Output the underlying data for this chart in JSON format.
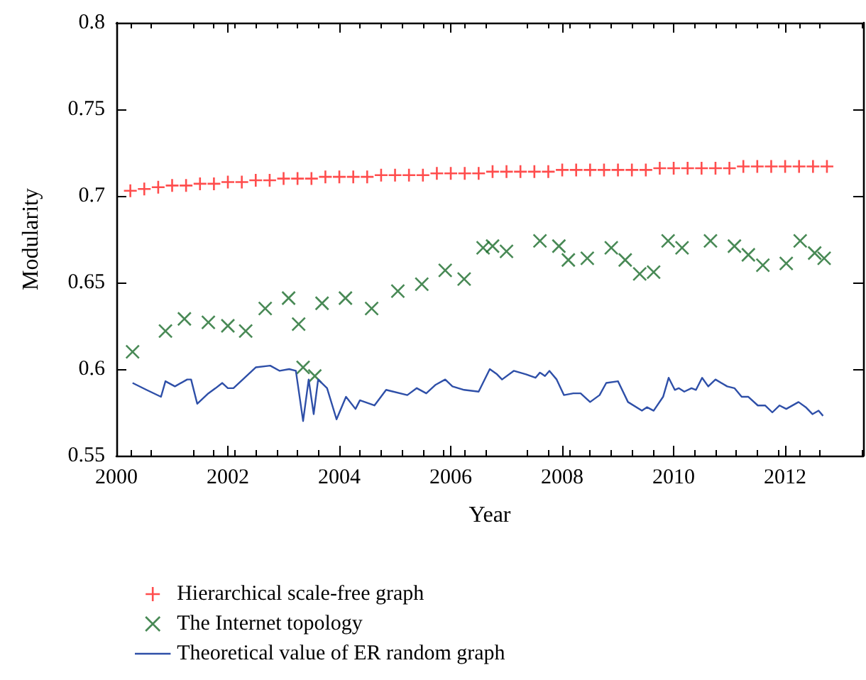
{
  "chart_data": {
    "type": "scatter",
    "xlabel": "Year",
    "ylabel": "Modularity",
    "xlim": [
      2000,
      2013.4
    ],
    "xticks": [
      2000,
      2002,
      2004,
      2006,
      2008,
      2010,
      2012
    ],
    "ylim": [
      0.55,
      0.8
    ],
    "yticks": [
      0.55,
      0.6,
      0.65,
      0.7,
      0.75,
      0.8
    ],
    "grid": false,
    "legend": "bottom",
    "series": [
      {
        "name": "Hierarchical scale-free graph",
        "marker": "cross",
        "color": "#ff2020",
        "x": [
          2000.25,
          2000.5,
          2000.75,
          2001,
          2001.25,
          2001.5,
          2001.75,
          2002,
          2002.25,
          2002.5,
          2002.75,
          2003,
          2003.25,
          2003.5,
          2003.75,
          2004,
          2004.25,
          2004.5,
          2004.75,
          2005,
          2005.25,
          2005.5,
          2005.75,
          2006,
          2006.25,
          2006.5,
          2006.75,
          2007,
          2007.25,
          2007.5,
          2007.75,
          2008,
          2008.25,
          2008.5,
          2008.75,
          2009,
          2009.25,
          2009.5,
          2009.75,
          2010,
          2010.25,
          2010.5,
          2010.75,
          2011,
          2011.25,
          2011.5,
          2011.75,
          2012,
          2012.25,
          2012.5,
          2012.75
        ],
        "values": [
          0.703,
          0.704,
          0.705,
          0.706,
          0.706,
          0.707,
          0.707,
          0.708,
          0.708,
          0.709,
          0.709,
          0.71,
          0.71,
          0.71,
          0.711,
          0.711,
          0.711,
          0.711,
          0.712,
          0.712,
          0.712,
          0.712,
          0.713,
          0.713,
          0.713,
          0.713,
          0.714,
          0.714,
          0.714,
          0.714,
          0.714,
          0.715,
          0.715,
          0.715,
          0.715,
          0.715,
          0.715,
          0.715,
          0.716,
          0.716,
          0.716,
          0.716,
          0.716,
          0.716,
          0.717,
          0.717,
          0.717,
          0.717,
          0.717,
          0.717,
          0.717
        ]
      },
      {
        "name": "The Internet topology",
        "marker": "x",
        "color": "#1a6b2a",
        "x": [
          2000.29,
          2000.88,
          2001.22,
          2001.65,
          2002.0,
          2002.32,
          2002.67,
          2003.09,
          2003.27,
          2003.35,
          2003.56,
          2003.69,
          2004.11,
          2004.58,
          2005.05,
          2005.48,
          2005.9,
          2006.24,
          2006.58,
          2006.75,
          2007.0,
          2007.6,
          2007.94,
          2008.11,
          2008.45,
          2008.88,
          2009.13,
          2009.39,
          2009.64,
          2009.9,
          2010.15,
          2010.66,
          2011.09,
          2011.34,
          2011.6,
          2012.02,
          2012.27,
          2012.53,
          2012.7
        ],
        "values": [
          0.61,
          0.622,
          0.629,
          0.627,
          0.625,
          0.622,
          0.635,
          0.641,
          0.626,
          0.601,
          0.596,
          0.638,
          0.641,
          0.635,
          0.645,
          0.649,
          0.657,
          0.652,
          0.67,
          0.671,
          0.668,
          0.674,
          0.671,
          0.663,
          0.664,
          0.67,
          0.663,
          0.655,
          0.656,
          0.674,
          0.67,
          0.674,
          0.671,
          0.666,
          0.66,
          0.661,
          0.674,
          0.667,
          0.664
        ]
      },
      {
        "name": "Theoretical value of ER random graph",
        "type": "line",
        "marker": "none",
        "color": "#2e4fa8",
        "x": [
          2000.29,
          2000.54,
          2000.8,
          2000.88,
          2001.05,
          2001.27,
          2001.34,
          2001.45,
          2001.65,
          2001.78,
          2001.9,
          2002.0,
          2002.1,
          2002.5,
          2002.76,
          2002.93,
          2003.1,
          2003.22,
          2003.35,
          2003.45,
          2003.54,
          2003.62,
          2003.78,
          2003.95,
          2004.12,
          2004.29,
          2004.37,
          2004.63,
          2004.84,
          2005.22,
          2005.39,
          2005.56,
          2005.73,
          2005.9,
          2006.03,
          2006.24,
          2006.5,
          2006.7,
          2006.83,
          2006.92,
          2007.13,
          2007.35,
          2007.52,
          2007.6,
          2007.69,
          2007.77,
          2007.9,
          2008.03,
          2008.2,
          2008.33,
          2008.5,
          2008.67,
          2008.79,
          2009.0,
          2009.18,
          2009.43,
          2009.52,
          2009.64,
          2009.81,
          2009.91,
          2010.02,
          2010.09,
          2010.19,
          2010.32,
          2010.4,
          2010.51,
          2010.62,
          2010.75,
          2010.96,
          2011.09,
          2011.22,
          2011.34,
          2011.51,
          2011.64,
          2011.77,
          2011.9,
          2012.02,
          2012.24,
          2012.37,
          2012.49,
          2012.6,
          2012.68
        ],
        "values": [
          0.592,
          0.588,
          0.584,
          0.593,
          0.59,
          0.594,
          0.594,
          0.58,
          0.586,
          0.589,
          0.592,
          0.589,
          0.589,
          0.601,
          0.602,
          0.599,
          0.6,
          0.599,
          0.57,
          0.594,
          0.574,
          0.594,
          0.589,
          0.571,
          0.584,
          0.577,
          0.582,
          0.579,
          0.588,
          0.585,
          0.589,
          0.586,
          0.591,
          0.594,
          0.59,
          0.588,
          0.587,
          0.6,
          0.597,
          0.594,
          0.599,
          0.597,
          0.595,
          0.598,
          0.596,
          0.599,
          0.594,
          0.585,
          0.586,
          0.586,
          0.581,
          0.585,
          0.592,
          0.593,
          0.581,
          0.576,
          0.578,
          0.576,
          0.584,
          0.595,
          0.588,
          0.589,
          0.587,
          0.589,
          0.588,
          0.595,
          0.59,
          0.594,
          0.59,
          0.589,
          0.584,
          0.584,
          0.579,
          0.579,
          0.575,
          0.579,
          0.577,
          0.581,
          0.578,
          0.574,
          0.576,
          0.573
        ]
      }
    ]
  }
}
